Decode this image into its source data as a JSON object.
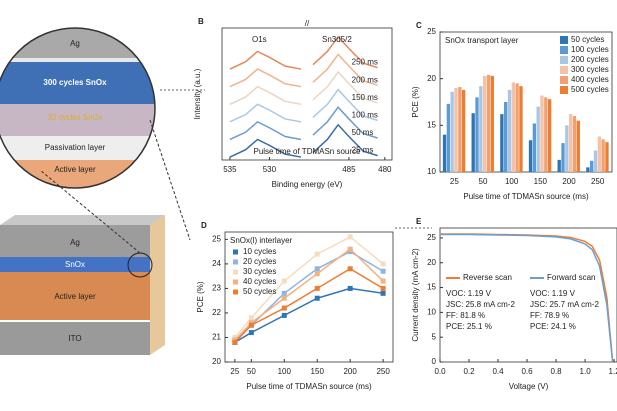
{
  "schematic": {
    "inset": {
      "layers": [
        "Ag",
        "300 cycles SnOx",
        "30 cycles SnOx",
        "Passivation layer",
        "Active layer"
      ]
    },
    "stack": {
      "layers": [
        "Ag",
        "SnOx",
        "Active layer",
        "ITO"
      ]
    }
  },
  "chart_data": [
    {
      "type": "line",
      "panel": "B",
      "peak_labels": [
        "O1s",
        "Sn3d5/2"
      ],
      "y_label": "Intensity (a.u.)",
      "x_label": "Binding energy (eV)",
      "annotation": "Pulse time of TDMASn source",
      "xlim": [
        536,
        479
      ],
      "xbreak": [
        526,
        490
      ],
      "xticks": [
        535,
        530,
        485,
        480
      ],
      "ylim": [
        0,
        9
      ],
      "legend": "line-end",
      "x": [
        535,
        533,
        531.5,
        530,
        528,
        526,
        490,
        488,
        486.5,
        485,
        483,
        481
      ],
      "series": [
        {
          "name": "25 ms",
          "color": "#3a6ea5",
          "values": [
            0.2,
            0.7,
            1.4,
            1.0,
            0.4,
            0.2,
            0.5,
            1.4,
            2.4,
            1.6,
            0.6,
            0.3
          ]
        },
        {
          "name": "50 ms",
          "color": "#6b9bd0",
          "values": [
            1.4,
            1.9,
            2.6,
            2.2,
            1.6,
            1.4,
            1.7,
            2.6,
            3.6,
            2.8,
            1.8,
            1.5
          ]
        },
        {
          "name": "100 ms",
          "color": "#a9c8e8",
          "values": [
            2.6,
            3.1,
            3.8,
            3.4,
            2.8,
            2.6,
            2.9,
            3.8,
            4.8,
            4.0,
            3.0,
            2.7
          ]
        },
        {
          "name": "150 ms",
          "color": "#e8d5c4",
          "values": [
            3.8,
            4.3,
            5.0,
            4.6,
            4.0,
            3.8,
            4.1,
            5.0,
            6.0,
            5.2,
            4.2,
            3.9
          ]
        },
        {
          "name": "200 ms",
          "color": "#f2b38e",
          "values": [
            5.0,
            5.5,
            6.2,
            5.8,
            5.2,
            5.0,
            5.3,
            6.2,
            7.2,
            6.4,
            5.4,
            5.1
          ]
        },
        {
          "name": "250 ms",
          "color": "#e8875a",
          "values": [
            6.2,
            6.7,
            7.4,
            7.0,
            6.4,
            6.2,
            6.5,
            7.4,
            8.4,
            7.6,
            6.6,
            6.3
          ]
        }
      ]
    },
    {
      "type": "bar",
      "panel": "C",
      "title": "SnOx transport layer",
      "y_label": "PCE (%)",
      "x_label": "Pulse time of TDMASn source (ms)",
      "categories": [
        "25",
        "50",
        "100",
        "150",
        "200",
        "250"
      ],
      "ylim": [
        10,
        25
      ],
      "yticks": [
        10,
        15,
        20,
        25
      ],
      "legend": "upper right",
      "series": [
        {
          "name": "50 cycles",
          "color": "#2e75b6",
          "values": [
            14.0,
            16.3,
            16.2,
            13.4,
            11.3,
            10.5
          ]
        },
        {
          "name": "100 cycles",
          "color": "#5b9bd5",
          "values": [
            17.3,
            18.0,
            17.5,
            15.2,
            13.1,
            11.2
          ]
        },
        {
          "name": "200 cycles",
          "color": "#a9c6e6",
          "values": [
            18.6,
            19.2,
            18.8,
            17.0,
            15.0,
            12.3
          ]
        },
        {
          "name": "300 cycles",
          "color": "#f4c2a6",
          "values": [
            19.0,
            20.3,
            19.6,
            18.2,
            16.2,
            13.8
          ]
        },
        {
          "name": "400 cycles",
          "color": "#f3a070",
          "values": [
            19.1,
            20.4,
            19.5,
            18.0,
            16.0,
            13.5
          ]
        },
        {
          "name": "500 cycles",
          "color": "#ed7d31",
          "values": [
            18.8,
            20.3,
            19.2,
            17.8,
            15.5,
            13.2
          ]
        }
      ]
    },
    {
      "type": "line",
      "panel": "D",
      "title": "SnOx(l) interlayer",
      "y_label": "PCE (%)",
      "x_label": "Pulse time of TDMASn source (ms)",
      "x": [
        25,
        50,
        100,
        150,
        200,
        250
      ],
      "xlim": [
        10,
        265
      ],
      "xticks": [
        25,
        50,
        100,
        150,
        200,
        250
      ],
      "ylim": [
        20,
        25.3
      ],
      "yticks": [
        20,
        21,
        22,
        23,
        24,
        25
      ],
      "markers": true,
      "legend": "upper left",
      "series": [
        {
          "name": "10 cycles",
          "color": "#2e75b6",
          "values": [
            20.8,
            21.2,
            21.9,
            22.6,
            23.0,
            22.8
          ]
        },
        {
          "name": "20 cycles",
          "color": "#8db4e2",
          "values": [
            20.9,
            21.5,
            22.8,
            23.8,
            24.5,
            23.7
          ]
        },
        {
          "name": "30 cycles",
          "color": "#f5dcc0",
          "values": [
            21.0,
            21.8,
            23.3,
            24.4,
            25.1,
            24.0
          ]
        },
        {
          "name": "40 cycles",
          "color": "#f6b07c",
          "values": [
            20.9,
            21.6,
            22.6,
            23.6,
            24.6,
            23.3
          ]
        },
        {
          "name": "50 cycles",
          "color": "#ed7d31",
          "values": [
            20.8,
            21.5,
            22.2,
            23.0,
            23.8,
            23.0
          ]
        }
      ]
    },
    {
      "type": "line",
      "panel": "E",
      "y_label": "Current density (mA cm-2)",
      "x_label": "Voltage (V)",
      "x": [
        0,
        0.2,
        0.4,
        0.6,
        0.8,
        0.9,
        1.0,
        1.05,
        1.1,
        1.15,
        1.19
      ],
      "xlim": [
        0,
        1.22
      ],
      "xticks": [
        {
          "value": 0,
          "label": "0.0"
        },
        {
          "value": 0.2,
          "label": "0.2"
        },
        {
          "value": 0.4,
          "label": "0.4"
        },
        {
          "value": 0.6,
          "label": "0.6"
        },
        {
          "value": 0.8,
          "label": "0.8"
        },
        {
          "value": 1,
          "label": "1.0"
        },
        {
          "value": 1.2,
          "label": "1.2"
        }
      ],
      "ylim": [
        0,
        27
      ],
      "yticks": [
        0,
        5,
        10,
        15,
        20,
        25
      ],
      "legend": "center",
      "series": [
        {
          "name": "Reverse scan",
          "color": "#ed7d31",
          "values": [
            25.8,
            25.8,
            25.7,
            25.6,
            25.4,
            25.1,
            24.3,
            23.3,
            20.5,
            13.0,
            0
          ]
        },
        {
          "name": "Forward scan",
          "color": "#6a9fd4",
          "values": [
            25.7,
            25.7,
            25.6,
            25.5,
            25.2,
            24.8,
            23.8,
            22.6,
            19.3,
            11.5,
            0
          ]
        }
      ],
      "annotations": [
        [
          "VOC: 1.19 V",
          "JSC: 25.8 mA cm-2",
          "FF: 81.8 %",
          "PCE: 25.1 %"
        ],
        [
          "VOC: 1.19 V",
          "JSC: 25.7 mA cm-2",
          "FF: 78.9 %",
          "PCE: 24.1 %"
        ]
      ]
    }
  ]
}
